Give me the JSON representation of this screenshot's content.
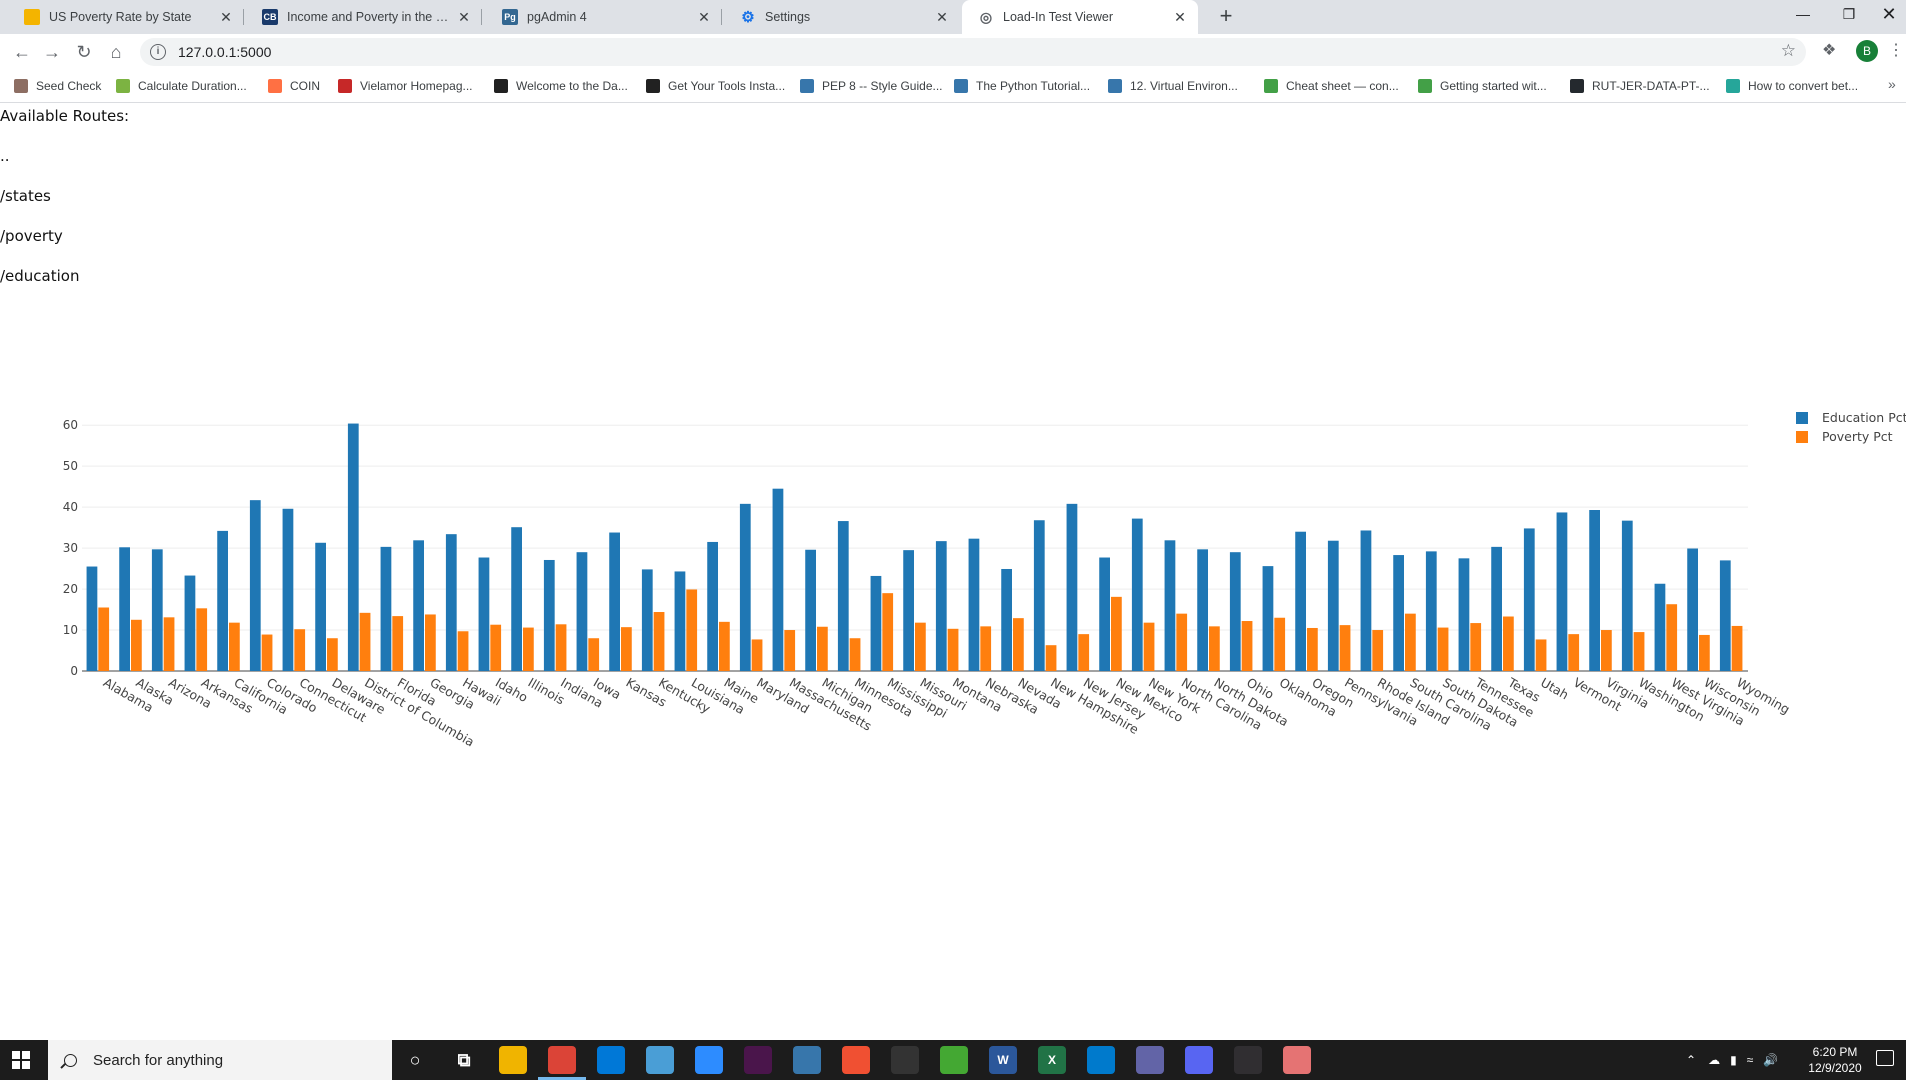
{
  "browser": {
    "tabs": [
      {
        "title": "US Poverty Rate by State",
        "icon": "chart-favicon",
        "color": "#f4b400"
      },
      {
        "title": "Income and Poverty in the United States",
        "icon": "cb-favicon",
        "color": "#1a3a6b",
        "badge": "CB"
      },
      {
        "title": "pgAdmin 4",
        "icon": "pgadmin-favicon",
        "color": "#336791",
        "badge": "Pg"
      },
      {
        "title": "Settings",
        "icon": "gear-icon",
        "color": "#1a73e8"
      },
      {
        "title": "Load-In Test Viewer",
        "icon": "globe-icon",
        "color": "#5f6368"
      }
    ],
    "active_tab": 4,
    "url": "127.0.0.1:5000",
    "avatar_letter": "B",
    "bookmarks": [
      {
        "label": "Seed Check",
        "color": "#8d6e63"
      },
      {
        "label": "Calculate Duration...",
        "color": "#7cb342"
      },
      {
        "label": "COIN",
        "color": "#ff7043"
      },
      {
        "label": "Vielamor Homepag...",
        "color": "#c62828"
      },
      {
        "label": "Welcome to the Da...",
        "color": "#212121"
      },
      {
        "label": "Get Your Tools Insta...",
        "color": "#212121"
      },
      {
        "label": "PEP 8 -- Style Guide...",
        "color": "#3776ab"
      },
      {
        "label": "The Python Tutorial...",
        "color": "#3776ab"
      },
      {
        "label": "12. Virtual Environ...",
        "color": "#3776ab"
      },
      {
        "label": "Cheat sheet — con...",
        "color": "#43a047"
      },
      {
        "label": "Getting started wit...",
        "color": "#43a047"
      },
      {
        "label": "RUT-JER-DATA-PT-...",
        "color": "#24292e"
      },
      {
        "label": "How to convert bet...",
        "color": "#26a69a"
      }
    ]
  },
  "page": {
    "heading": "Available Routes:",
    "routes": [
      "..",
      "/states",
      "/poverty",
      "/education"
    ]
  },
  "chart_data": {
    "type": "bar",
    "categories": [
      "Alabama",
      "Alaska",
      "Arizona",
      "Arkansas",
      "California",
      "Colorado",
      "Connecticut",
      "Delaware",
      "District of Columbia",
      "Florida",
      "Georgia",
      "Hawaii",
      "Idaho",
      "Illinois",
      "Indiana",
      "Iowa",
      "Kansas",
      "Kentucky",
      "Louisiana",
      "Maine",
      "Maryland",
      "Massachusetts",
      "Michigan",
      "Minnesota",
      "Mississippi",
      "Missouri",
      "Montana",
      "Nebraska",
      "Nevada",
      "New Hampshire",
      "New Jersey",
      "New Mexico",
      "New York",
      "North Carolina",
      "North Dakota",
      "Ohio",
      "Oklahoma",
      "Oregon",
      "Pennsylvania",
      "Rhode Island",
      "South Carolina",
      "South Dakota",
      "Tennessee",
      "Texas",
      "Utah",
      "Vermont",
      "Virginia",
      "Washington",
      "West Virginia",
      "Wisconsin",
      "Wyoming"
    ],
    "series": [
      {
        "name": "Education Pct",
        "color": "#1f77b4",
        "values": [
          25.5,
          30.2,
          29.7,
          23.3,
          34.2,
          41.7,
          39.6,
          31.3,
          60.4,
          30.3,
          31.9,
          33.4,
          27.7,
          35.1,
          27.1,
          29.0,
          33.8,
          24.8,
          24.3,
          31.5,
          40.8,
          44.5,
          29.6,
          36.6,
          23.2,
          29.5,
          31.7,
          32.3,
          24.9,
          36.8,
          40.8,
          27.7,
          37.2,
          31.9,
          29.7,
          29.0,
          25.6,
          34.0,
          31.8,
          34.3,
          28.3,
          29.2,
          27.5,
          30.3,
          34.8,
          38.7,
          39.3,
          36.7,
          21.3,
          29.9,
          27.0
        ]
      },
      {
        "name": "Poverty Pct",
        "color": "#ff7f0e",
        "values": [
          15.5,
          12.5,
          13.1,
          15.3,
          11.8,
          8.9,
          10.2,
          8.0,
          14.2,
          13.4,
          13.8,
          9.7,
          11.3,
          10.6,
          11.4,
          8.0,
          10.7,
          14.4,
          19.9,
          12.0,
          7.7,
          10.0,
          10.8,
          8.0,
          19.0,
          11.8,
          10.3,
          10.9,
          12.9,
          6.3,
          9.0,
          18.1,
          11.8,
          14.0,
          10.9,
          12.2,
          13.0,
          10.5,
          11.2,
          10.0,
          14.0,
          10.6,
          11.7,
          13.3,
          7.7,
          9.0,
          10.0,
          9.5,
          16.3,
          8.8,
          11.0
        ]
      }
    ],
    "ylim": [
      0,
      62
    ],
    "yticks": [
      0,
      10,
      20,
      30,
      40,
      50,
      60
    ],
    "grid": true,
    "legend": "top-right"
  },
  "taskbar": {
    "search_placeholder": "Search for anything",
    "time": "6:20 PM",
    "date": "12/9/2020",
    "apps": [
      {
        "name": "cortana-icon",
        "color": "#1c1c1c",
        "glyph": "○"
      },
      {
        "name": "task-view-icon",
        "color": "#1c1c1c",
        "glyph": "⧉"
      },
      {
        "name": "file-explorer-icon",
        "color": "#f0b400",
        "glyph": ""
      },
      {
        "name": "chrome-icon",
        "color": "#db4437",
        "glyph": "",
        "active": true
      },
      {
        "name": "calculator-icon",
        "color": "#0078d7",
        "glyph": ""
      },
      {
        "name": "notes-icon",
        "color": "#4a9ed6",
        "glyph": ""
      },
      {
        "name": "zoom-icon",
        "color": "#2d8cff",
        "glyph": ""
      },
      {
        "name": "slack-icon",
        "color": "#4a154b",
        "glyph": ""
      },
      {
        "name": "python-icon",
        "color": "#3776ab",
        "glyph": ""
      },
      {
        "name": "git-icon",
        "color": "#f05032",
        "glyph": ""
      },
      {
        "name": "terminal-icon",
        "color": "#333333",
        "glyph": ""
      },
      {
        "name": "anaconda-icon",
        "color": "#44a833",
        "glyph": ""
      },
      {
        "name": "word-icon",
        "color": "#2b579a",
        "glyph": "W"
      },
      {
        "name": "excel-icon",
        "color": "#217346",
        "glyph": "X"
      },
      {
        "name": "vscode-icon",
        "color": "#007acc",
        "glyph": ""
      },
      {
        "name": "teams-icon",
        "color": "#6264a7",
        "glyph": ""
      },
      {
        "name": "discord-icon",
        "color": "#5865f2",
        "glyph": ""
      },
      {
        "name": "obs-icon",
        "color": "#302e31",
        "glyph": ""
      },
      {
        "name": "paint-icon",
        "color": "#e57373",
        "glyph": ""
      }
    ]
  }
}
